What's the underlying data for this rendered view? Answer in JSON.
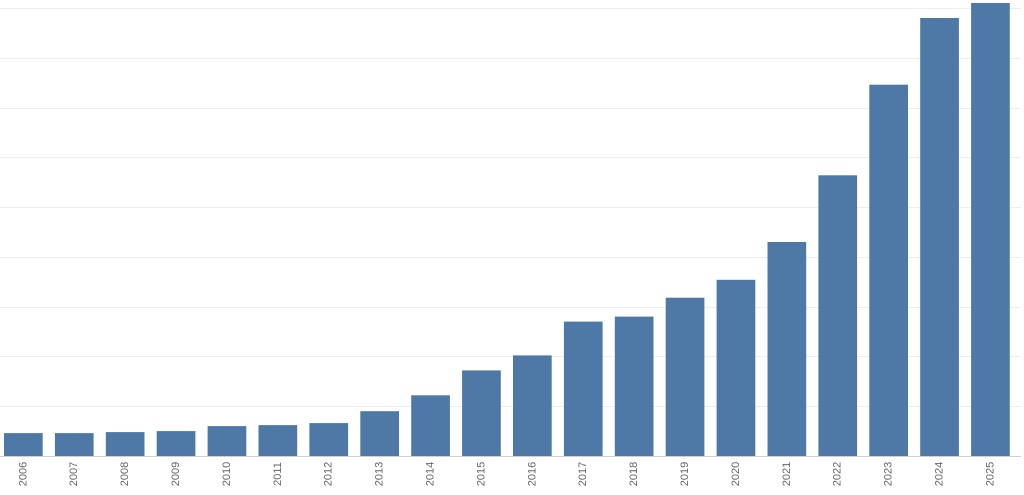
{
  "chart_data": {
    "type": "bar",
    "title": "",
    "xlabel": "",
    "ylabel": "",
    "categories": [
      "2006",
      "2007",
      "2008",
      "2009",
      "2010",
      "2011",
      "2012",
      "2013",
      "2014",
      "2015",
      "2016",
      "2017",
      "2018",
      "2019",
      "2020",
      "2021",
      "2022",
      "2023",
      "2024",
      "2025"
    ],
    "values": [
      23,
      23,
      24,
      25,
      30,
      31,
      33,
      45,
      61,
      86,
      101,
      135,
      140,
      159,
      177,
      215,
      282,
      373,
      440,
      455
    ],
    "ylim": [
      0,
      450
    ],
    "ytick_step": 50,
    "grid": true,
    "color": "#4e79a7"
  }
}
